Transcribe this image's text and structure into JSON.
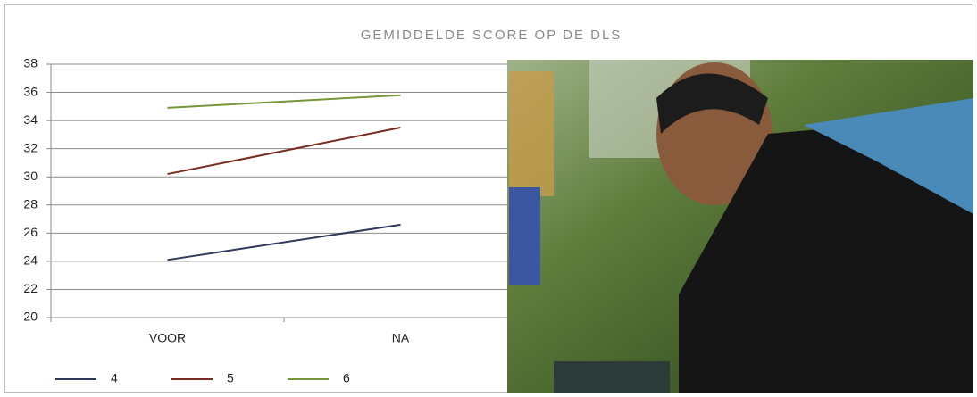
{
  "chart_data": {
    "type": "line",
    "title": "GEMIDDELDE SCORE OP DE DLS",
    "categories": [
      "VOOR",
      "NA"
    ],
    "series": [
      {
        "name": "4",
        "color": "#2f3a5a",
        "values": [
          24.1,
          26.6
        ]
      },
      {
        "name": "5",
        "color": "#7b2a1f",
        "values": [
          30.2,
          33.5
        ]
      },
      {
        "name": "6",
        "color": "#76963a",
        "values": [
          34.9,
          35.8
        ]
      }
    ],
    "ylim": [
      20,
      38
    ],
    "yticks": [
      20,
      22,
      24,
      26,
      28,
      30,
      32,
      34,
      36,
      38
    ],
    "grid": true,
    "legend": "bottom"
  }
}
